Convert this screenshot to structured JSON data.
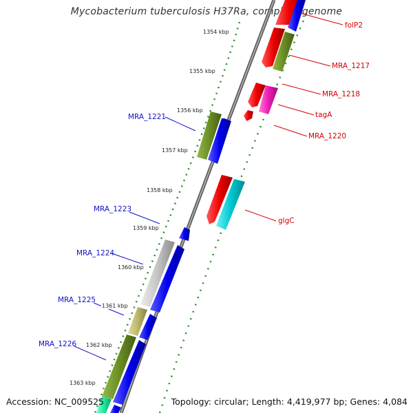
{
  "header": {
    "title": "Mycobacterium tuberculosis H37Ra, complete genome"
  },
  "footer": {
    "accession": "Accession: NC_009525",
    "summary": "Topology: circular; Length: 4,419,977 bp; Genes: 4,084"
  },
  "scale_labels": [
    "1354 kbp",
    "1355 kbp",
    "1356 kbp",
    "1357 kbp",
    "1358 kbp",
    "1359 kbp",
    "1360 kbp",
    "1361 kbp",
    "1362 kbp",
    "1363 kbp"
  ],
  "gene_labels": {
    "plus": [
      "folP2",
      "MRA_1217",
      "MRA_1218",
      "tagA",
      "MRA_1220",
      "glgC"
    ],
    "minus": [
      "MRA_1221",
      "MRA_1223",
      "MRA_1224",
      "MRA_1225",
      "MRA_1226"
    ]
  },
  "colors": {
    "red": "#ee0000",
    "blue": "#0000ee",
    "olive": "#6b8e23",
    "magenta": "#ee1ab4",
    "cyan": "#00c8d2",
    "gray": "#bdbdbd",
    "khaki": "#bdb76b",
    "green": "#228b22",
    "backbone": "#808080"
  }
}
